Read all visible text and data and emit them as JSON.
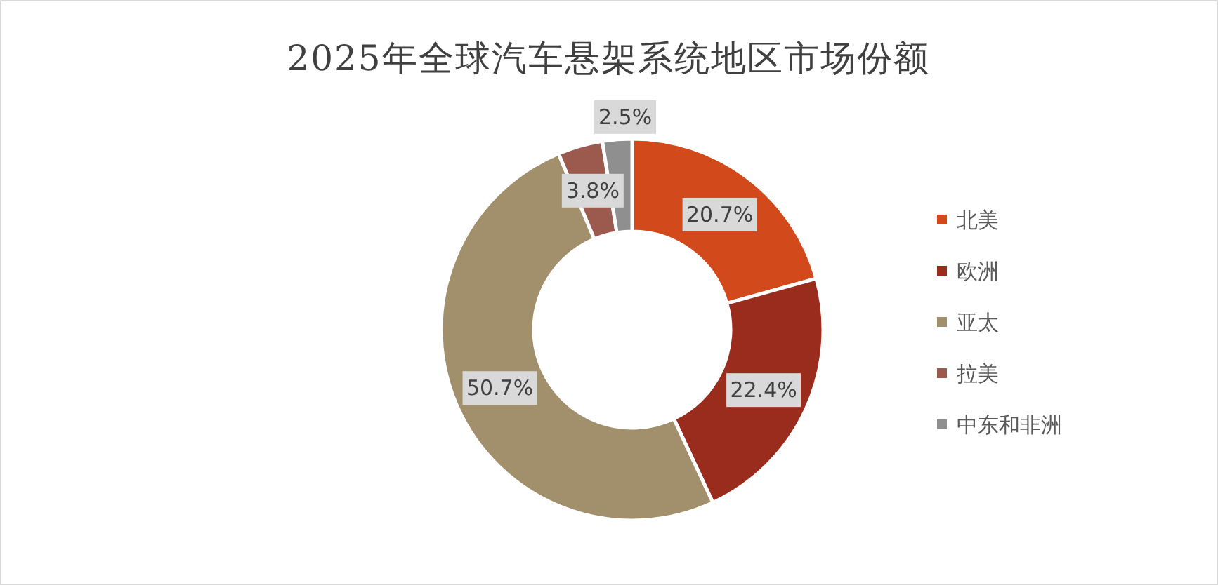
{
  "chart_data": {
    "type": "donut",
    "title": "2025年全球汽车悬架系统地区市场份额",
    "categories": [
      "北美",
      "欧洲",
      "亚太",
      "拉美",
      "中东和非洲"
    ],
    "values": [
      20.7,
      22.4,
      50.7,
      3.8,
      2.5
    ],
    "colors": [
      "#d24a1b",
      "#9a2c1e",
      "#a28f6b",
      "#9b5a4d",
      "#8f8f8f"
    ],
    "value_labels": [
      "20.7%",
      "22.4%",
      "50.7%",
      "3.8%",
      "2.5%"
    ],
    "legend": "right"
  }
}
